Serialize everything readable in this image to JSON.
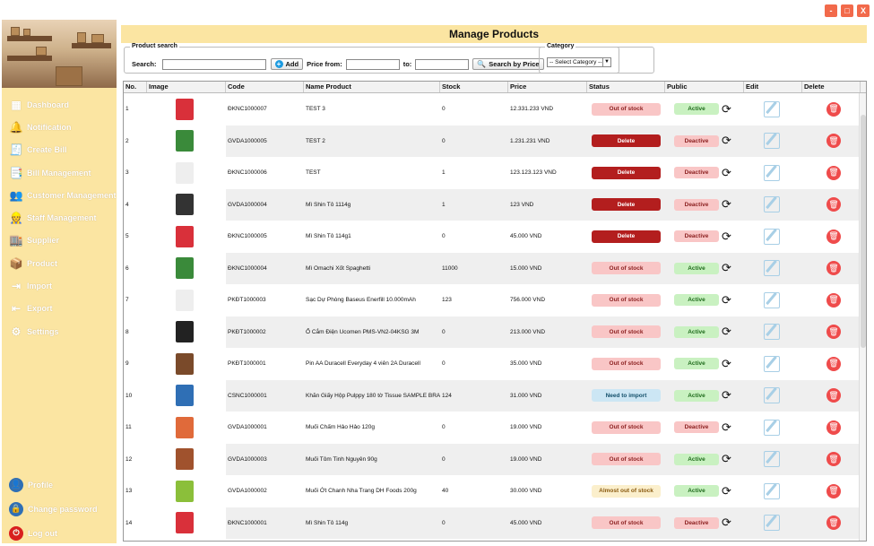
{
  "window": {
    "min": "-",
    "max": "□",
    "close": "X"
  },
  "sidebar": {
    "items": [
      {
        "label": "Dashboard",
        "icon": "dashboard-icon",
        "glyph": "▦"
      },
      {
        "label": "Notification",
        "icon": "bell-icon",
        "glyph": "🔔"
      },
      {
        "label": "Create Bill",
        "icon": "receipt-icon",
        "glyph": "🧾"
      },
      {
        "label": "Bill Management",
        "icon": "bill-stack-icon",
        "glyph": "📑"
      },
      {
        "label": "Customer Management",
        "icon": "customers-icon",
        "glyph": "👥"
      },
      {
        "label": "Staff Management",
        "icon": "staff-icon",
        "glyph": "👷"
      },
      {
        "label": "Supplier",
        "icon": "supplier-icon",
        "glyph": "🏬"
      },
      {
        "label": "Product",
        "icon": "box-icon",
        "glyph": "📦"
      },
      {
        "label": "Import",
        "icon": "import-icon",
        "glyph": "⇥"
      },
      {
        "label": "Export",
        "icon": "export-icon",
        "glyph": "⇤"
      },
      {
        "label": "Settings",
        "icon": "settings-icon",
        "glyph": "⚙"
      }
    ],
    "bottom": [
      {
        "label": "Profile",
        "icon": "profile-icon",
        "glyph": "👤",
        "color": "#2f6fb5"
      },
      {
        "label": "Change password",
        "icon": "lock-icon",
        "glyph": "🔒",
        "color": "#2f6fb5"
      },
      {
        "label": "Log out",
        "icon": "power-icon",
        "glyph": "⏻",
        "color": "#d91f1f"
      }
    ]
  },
  "header": {
    "title": "Manage Products"
  },
  "filters": {
    "legend": "Product search",
    "search_label": "Search:",
    "search_value": "",
    "add_label": "Add",
    "price_from_label": "Price from:",
    "price_from_value": "",
    "to_label": "to:",
    "to_value": "",
    "search_by_price_label": "Search by Price"
  },
  "category": {
    "legend": "Category",
    "selected": "-- Select Category --"
  },
  "table": {
    "columns": [
      "No.",
      "Image",
      "Code",
      "Name Product",
      "Stock",
      "Price",
      "Status",
      "Public",
      "Edit",
      "Delete"
    ],
    "rows": [
      {
        "no": "1",
        "code": "ĐKNC1000007",
        "name": "TEST 3",
        "stock": "0",
        "price": "12.331.233 VND",
        "status": "Out of stock",
        "status_kind": "oos",
        "public": "Active",
        "public_kind": "active",
        "img": "#d9303a"
      },
      {
        "no": "2",
        "code": "GVDA1000005",
        "name": "TEST 2",
        "stock": "0",
        "price": "1.231.231 VND",
        "status": "Delete",
        "status_kind": "del",
        "public": "Deactive",
        "public_kind": "deactive",
        "img": "#3a8a3a"
      },
      {
        "no": "3",
        "code": "ĐKNC1000006",
        "name": "TEST",
        "stock": "1",
        "price": "123.123.123 VND",
        "status": "Delete",
        "status_kind": "del",
        "public": "Deactive",
        "public_kind": "deactive",
        "img": "#eeeeee"
      },
      {
        "no": "4",
        "code": "GVDA1000004",
        "name": "Mì Shin Tô 1114g",
        "stock": "1",
        "price": "123 VND",
        "status": "Delete",
        "status_kind": "del",
        "public": "Deactive",
        "public_kind": "deactive",
        "img": "#333333"
      },
      {
        "no": "5",
        "code": "ĐKNC1000005",
        "name": "Mì Shin Tô 114g1",
        "stock": "0",
        "price": "45.000 VND",
        "status": "Delete",
        "status_kind": "del",
        "public": "Deactive",
        "public_kind": "deactive",
        "img": "#d9303a"
      },
      {
        "no": "6",
        "code": "ĐKNC1000004",
        "name": "Mì Omachi Xốt Spaghetti",
        "stock": "11000",
        "price": "15.000 VND",
        "status": "Out of stock",
        "status_kind": "oos",
        "public": "Active",
        "public_kind": "active",
        "img": "#3a8a3a"
      },
      {
        "no": "7",
        "code": "PKĐT1000003",
        "name": "Sạc Dự Phòng Baseus Enerfill 10.000mAh",
        "stock": "123",
        "price": "756.000 VND",
        "status": "Out of stock",
        "status_kind": "oos",
        "public": "Active",
        "public_kind": "active",
        "img": "#eeeeee"
      },
      {
        "no": "8",
        "code": "PKĐT1000002",
        "name": "Ổ Cắm Điện Ucomen PMS-VN2-04KSG 3M",
        "stock": "0",
        "price": "213.000 VND",
        "status": "Out of stock",
        "status_kind": "oos",
        "public": "Active",
        "public_kind": "active",
        "img": "#222222"
      },
      {
        "no": "9",
        "code": "PKĐT1000001",
        "name": "Pin AA Duracell Everyday 4 viên 2A Duracell",
        "stock": "0",
        "price": "35.000 VND",
        "status": "Out of stock",
        "status_kind": "oos",
        "public": "Active",
        "public_kind": "active",
        "img": "#7a4a2a"
      },
      {
        "no": "10",
        "code": "CSNC1000001",
        "name": "Khăn Giấy Hộp Pulppy 180 tờ Tissue SAMPLE BRA...",
        "stock": "124",
        "price": "31.000 VND",
        "status": "Need to import",
        "status_kind": "nti",
        "public": "Active",
        "public_kind": "active",
        "img": "#2f6fb5"
      },
      {
        "no": "11",
        "code": "GVDA1000001",
        "name": "Muối Chấm Hảo Hảo 120g",
        "stock": "0",
        "price": "19.000 VND",
        "status": "Out of stock",
        "status_kind": "oos",
        "public": "Deactive",
        "public_kind": "deactive",
        "img": "#e06a3a"
      },
      {
        "no": "12",
        "code": "GVDA1000003",
        "name": "Muối Tôm Tinh Nguyên 90g",
        "stock": "0",
        "price": "19.000 VND",
        "status": "Out of stock",
        "status_kind": "oos",
        "public": "Active",
        "public_kind": "active",
        "img": "#a0522d"
      },
      {
        "no": "13",
        "code": "GVDA1000002",
        "name": "Muối Ớt Chanh Nha Trang DH Foods 200g",
        "stock": "40",
        "price": "30.000 VND",
        "status": "Almost out of stock",
        "status_kind": "alm",
        "public": "Active",
        "public_kind": "active",
        "img": "#8bbf3a"
      },
      {
        "no": "14",
        "code": "ĐKNC1000001",
        "name": "Mì Shin Tô 114g",
        "stock": "0",
        "price": "45.000 VND",
        "status": "Out of stock",
        "status_kind": "oos",
        "public": "Deactive",
        "public_kind": "deactive",
        "img": "#d9303a"
      }
    ]
  }
}
